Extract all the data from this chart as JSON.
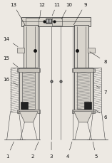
{
  "bg_color": "#ede9e3",
  "line_color": "#444444",
  "dark_color": "#111111",
  "gray_color": "#777777",
  "fill_color": "#c8c4bc",
  "fill_light": "#d8d4cc",
  "label_fontsize": 5.0,
  "ann_color": "#111111"
}
